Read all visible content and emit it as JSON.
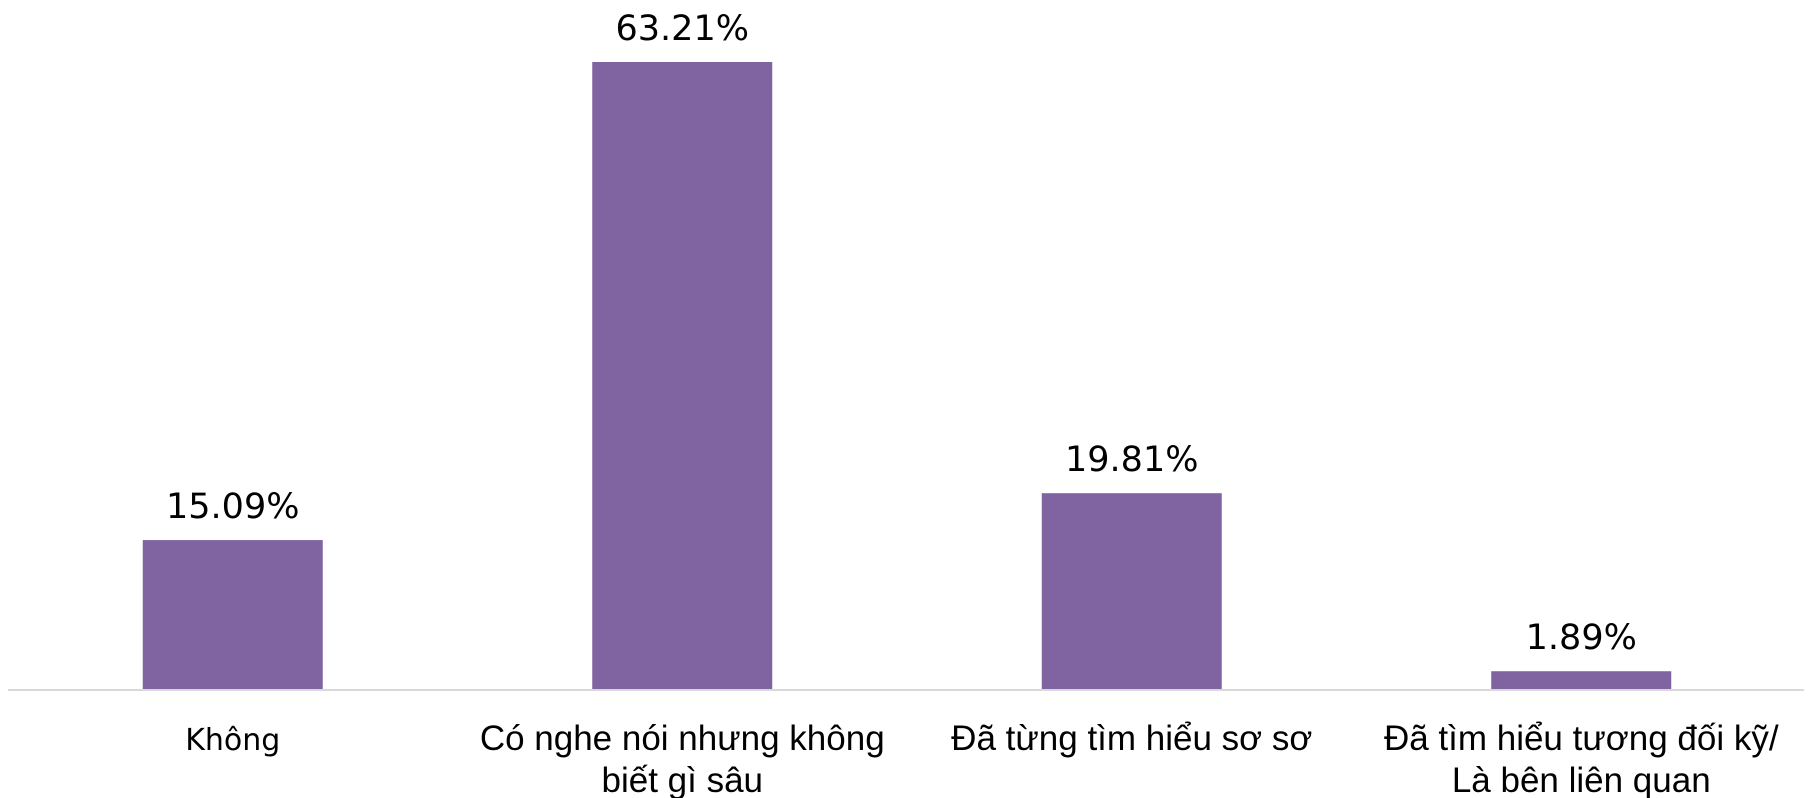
{
  "chart_data": {
    "type": "bar",
    "categories": [
      [
        "Không"
      ],
      [
        "Có nghe nói nhưng không",
        "biết gì sâu"
      ],
      [
        "Đã từng tìm hiểu sơ sơ"
      ],
      [
        "Đã tìm hiểu tương đối kỹ/",
        "Là bên liên quan"
      ]
    ],
    "values": [
      15.09,
      63.21,
      19.81,
      1.89
    ],
    "value_labels": [
      "15.09%",
      "63.21%",
      "19.81%",
      "1.89%"
    ],
    "ylim": [
      0,
      63.21
    ],
    "grid": false,
    "legend": "none",
    "bar_color": "#8064a2",
    "axis_color": "#d9d9d9"
  }
}
